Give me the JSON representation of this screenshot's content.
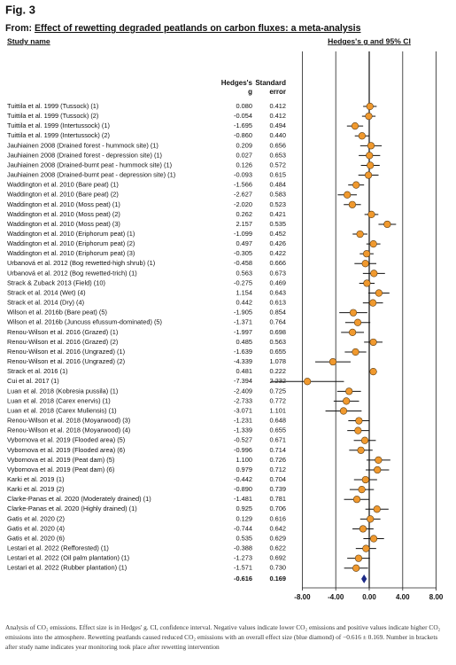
{
  "chart_data": {
    "type": "forest",
    "figure_label": "Fig. 3",
    "title_prefix": "From:",
    "title": "Effect of rewetting degraded peatlands on carbon fluxes: a meta-analysis",
    "study_header": "Study name",
    "plot_header": "Hedges's g and 95% CI",
    "column_headers": [
      [
        "Hedges's",
        "g"
      ],
      [
        "Standard",
        "error"
      ]
    ],
    "categories": [
      "Tuittila et al. 1999 (Tussock) (1)",
      "Tuittila et al. 1999 (Tussock) (2)",
      "Tuittila et al. 1999 (Intertussock) (1)",
      "Tuittila et al. 1999 (Intertussock) (2)",
      "Jauhiainen 2008 (Drained forest - hummock site) (1)",
      "Jauhiainen 2008 (Drained forest - depression site) (1)",
      "Jauhiainen 2008 (Drained-burnt peat - hummock site) (1)",
      "Jauhiainen 2008 (Drained-burnt peat - depression site) (1)",
      "Waddington et al. 2010 (Bare peat) (1)",
      "Waddington et al. 2010 (Bare peat) (2)",
      "Waddington et al. 2010 (Moss peat) (1)",
      "Waddington et al. 2010 (Moss peat) (2)",
      "Waddington et al. 2010 (Moss peat) (3)",
      "Waddington et al. 2010 (Eriphorum peat) (1)",
      "Waddington et al. 2010 (Eriphorum peat) (2)",
      "Waddington et al. 2010 (Eriphorum peat) (3)",
      "Urbanová et al. 2012 (Bog rewetted-high shrub) (1)",
      "Urbanová et al. 2012 (Bog rewetted-trich) (1)",
      "Strack & Zuback 2013 (Field) (10)",
      "Strack et al. 2014 (Wet) (4)",
      "Strack et al. 2014 (Dry) (4)",
      "Wilson et al. 2016b (Bare peat) (5)",
      "Wilson et al. 2016b (Juncuss efussum-dominated) (5)",
      "Renou-Wilson et al. 2016 (Grazed) (1)",
      "Renou-Wilson et al. 2016 (Grazed) (2)",
      "Renou-Wilson et al. 2016 (Ungrazed) (1)",
      "Renou-Wilson et al. 2016 (Ungrazed) (2)",
      "Strack et al. 2016 (1)",
      "Cui et al. 2017 (1)",
      "Luan et al. 2018 (Kobresia pussila) (1)",
      "Luan et al. 2018 (Carex enervis) (1)",
      "Luan et al. 2018 (Carex Muliensis) (1)",
      "Renou-Wilson et al. 2018 (Moyarwood) (3)",
      "Renou-Wilson et al. 2018 (Moyarwood) (4)",
      "Vybornova et al. 2019 (Flooded area) (5)",
      "Vybornova et al. 2019 (Flooded area) (6)",
      "Vybornova et al. 2019 (Peat dam) (5)",
      "Vybornova et al. 2019 (Peat dam) (6)",
      "Karki et al. 2019 (1)",
      "Karki et al. 2019 (2)",
      "Clarke-Panas et al. 2020 (Moderately drained) (1)",
      "Clarke-Panas et al. 2020 (Highly drained) (1)",
      "Gatis et al. 2020 (2)",
      "Gatis et al. 2020 (4)",
      "Gatis et al. 2020 (6)",
      "Lestari et al. 2022 (Refforested) (1)",
      "Lestari et al. 2022 (Oil palm plantation) (1)",
      "Lestari et al. 2022 (Rubber plantation) (1)"
    ],
    "values": [
      0.08,
      -0.054,
      -1.695,
      -0.86,
      0.209,
      0.027,
      0.126,
      -0.093,
      -1.566,
      -2.627,
      -2.02,
      0.262,
      2.157,
      -1.099,
      0.497,
      -0.305,
      -0.458,
      0.563,
      -0.275,
      1.154,
      0.442,
      -1.905,
      -1.371,
      -1.997,
      0.485,
      -1.639,
      -4.339,
      0.481,
      -7.394,
      -2.409,
      -2.733,
      -3.071,
      -1.231,
      -1.339,
      -0.527,
      -0.996,
      1.1,
      0.979,
      -0.442,
      -0.89,
      -1.481,
      0.925,
      0.129,
      -0.744,
      0.535,
      -0.388,
      -1.273,
      -1.571
    ],
    "value_labels": [
      "0.080",
      "-0.054",
      "-1.695",
      "-0.860",
      "0.209",
      "0.027",
      "0.126",
      "-0.093",
      "-1.566",
      "-2.627",
      "-2.020",
      "0.262",
      "2.157",
      "-1.099",
      "0.497",
      "-0.305",
      "-0.458",
      "0.563",
      "-0.275",
      "1.154",
      "0.442",
      "-1.905",
      "-1.371",
      "-1.997",
      "0.485",
      "-1.639",
      "-4.339",
      "0.481",
      "-7.394",
      "-2.409",
      "-2.733",
      "-3.071",
      "-1.231",
      "-1.339",
      "-0.527",
      "-0.996",
      "1.100",
      "0.979",
      "-0.442",
      "-0.890",
      "-1.481",
      "0.925",
      "0.129",
      "-0.744",
      "0.535",
      "-0.388",
      "-1.273",
      "-1.571"
    ],
    "errors": [
      0.412,
      0.412,
      0.494,
      0.44,
      0.656,
      0.653,
      0.572,
      0.615,
      0.484,
      0.583,
      0.523,
      0.421,
      0.535,
      0.452,
      0.426,
      0.422,
      0.666,
      0.673,
      0.469,
      0.643,
      0.613,
      0.854,
      0.764,
      0.698,
      0.563,
      0.655,
      1.078,
      0.222,
      2.232,
      0.725,
      0.772,
      1.101,
      0.648,
      0.655,
      0.671,
      0.714,
      0.726,
      0.712,
      0.704,
      0.739,
      0.781,
      0.706,
      0.616,
      0.642,
      0.629,
      0.622,
      0.692,
      0.73
    ],
    "error_labels": [
      "0.412",
      "0.412",
      "0.494",
      "0.440",
      "0.656",
      "0.653",
      "0.572",
      "0.615",
      "0.484",
      "0.583",
      "0.523",
      "0.421",
      "0.535",
      "0.452",
      "0.426",
      "0.422",
      "0.666",
      "0.673",
      "0.469",
      "0.643",
      "0.613",
      "0.854",
      "0.764",
      "0.698",
      "0.563",
      "0.655",
      "1.078",
      "0.222",
      "2.232",
      "0.725",
      "0.772",
      "1.101",
      "0.648",
      "0.655",
      "0.671",
      "0.714",
      "0.726",
      "0.712",
      "0.704",
      "0.739",
      "0.781",
      "0.706",
      "0.616",
      "0.642",
      "0.629",
      "0.622",
      "0.692",
      "0.730"
    ],
    "summary": {
      "value": -0.616,
      "value_label": "-0.616",
      "error": 0.169,
      "error_label": "0.169"
    },
    "color": "#f0992e",
    "summary_color": "#1c2a86",
    "xlim": [
      -8,
      8
    ],
    "xticks": [
      {
        "value": -8,
        "label": "-8.00"
      },
      {
        "value": -4,
        "label": "-4.00"
      },
      {
        "value": 0,
        "label": "0.00"
      },
      {
        "value": 4,
        "label": "4.00"
      },
      {
        "value": 8,
        "label": "8.00"
      }
    ],
    "grid": true,
    "caption": "Analysis of CO₂ emissions. Effect size is in Hedges' g. CI, confidence interval. Negative values indicate lower CO₂ emissions and positive values indicate higher CO₂ emissions into the atmosphere. Rewetting peatlands caused reduced CO₂ emissions with an overall effect size (blue diamond) of −0.616 ± 0.169. Number in brackets after study name indicates year monitoring took place after rewetting intervention"
  }
}
